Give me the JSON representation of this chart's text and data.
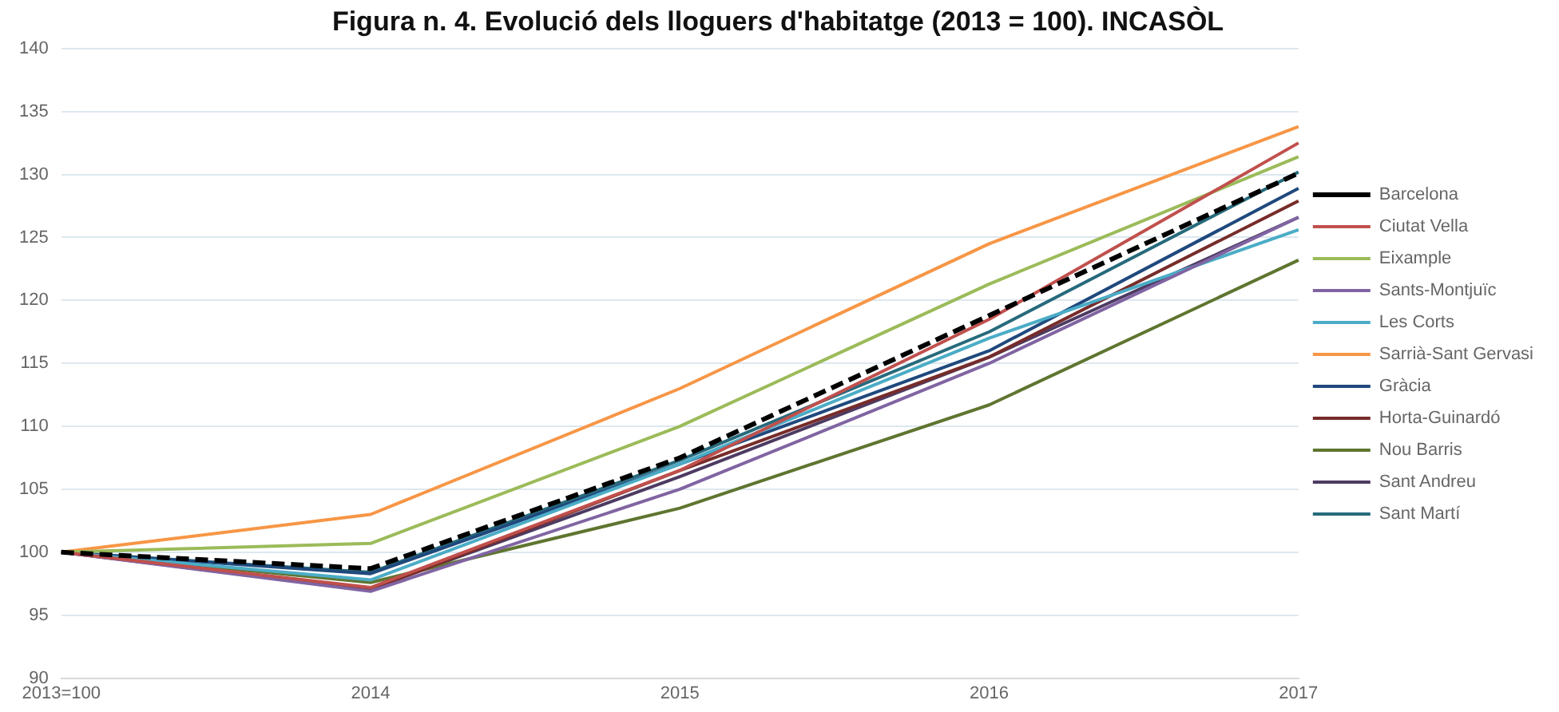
{
  "chart_data": {
    "type": "line",
    "title": "Figura n. 4. Evolució dels lloguers d'habitatge (2013 = 100). INCASÒL",
    "categories": [
      "2013=100",
      "2014",
      "2015",
      "2016",
      "2017"
    ],
    "ylim": [
      90,
      140
    ],
    "yticks": [
      90,
      95,
      100,
      105,
      110,
      115,
      120,
      125,
      130,
      135,
      140
    ],
    "grid": "y",
    "legend": "right",
    "marker": "none",
    "line_style": "solid",
    "series": [
      {
        "name": "Barcelona",
        "color": "#000000",
        "line_style": "dashed",
        "values": [
          100,
          98.7,
          107.5,
          118.8,
          130.1
        ]
      },
      {
        "name": "Ciutat Vella",
        "color": "#c0504d",
        "values": [
          100,
          97.2,
          106.5,
          118.5,
          132.5
        ]
      },
      {
        "name": "Eixample",
        "color": "#9bbb59",
        "values": [
          100,
          100.7,
          110,
          121.3,
          131.4
        ]
      },
      {
        "name": "Sants-Montjuïc",
        "color": "#8064a2",
        "values": [
          100,
          96.9,
          105,
          115,
          126.6
        ]
      },
      {
        "name": "Les Corts",
        "color": "#4bacc6",
        "values": [
          100,
          97.8,
          107,
          117,
          125.6
        ]
      },
      {
        "name": "Sarrià-Sant Gervasi",
        "color": "#f79646",
        "values": [
          100,
          103,
          113,
          124.5,
          133.8
        ]
      },
      {
        "name": "Gràcia",
        "color": "#1f497d",
        "values": [
          100,
          98.3,
          107,
          116,
          128.9
        ]
      },
      {
        "name": "Horta-Guinardó",
        "color": "#772c2a",
        "values": [
          100,
          97,
          106.5,
          115.5,
          127.9
        ]
      },
      {
        "name": "Nou Barris",
        "color": "#5f7530",
        "values": [
          100,
          97.6,
          103.5,
          111.7,
          123.2
        ]
      },
      {
        "name": "Sant Andreu",
        "color": "#4d3b62",
        "values": [
          100,
          97.1,
          106,
          115.5,
          126.6
        ]
      },
      {
        "name": "Sant Martí",
        "color": "#276a7c",
        "values": [
          100,
          98.4,
          107.3,
          117.5,
          130.2
        ]
      }
    ]
  }
}
